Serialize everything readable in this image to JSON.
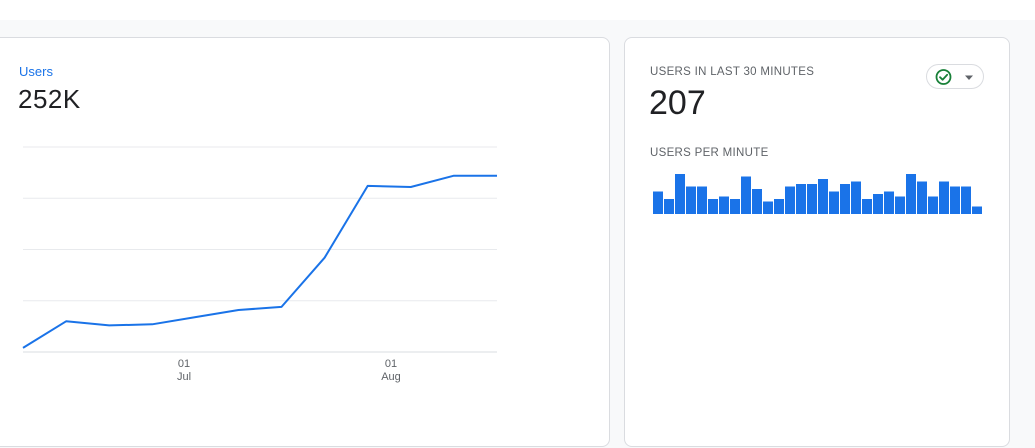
{
  "users_card": {
    "label": "Users",
    "value": "252K"
  },
  "realtime_card": {
    "title": "USERS IN LAST 30 MINUTES",
    "value": "207",
    "subtitle": "USERS PER MINUTE"
  },
  "icons": {
    "status": "check-circle-icon",
    "dropdown": "dropdown-arrow-icon"
  },
  "colors": {
    "accent": "#1a73e8",
    "status_ok": "#188038"
  },
  "chart_data": [
    {
      "type": "line",
      "series": [
        {
          "values": [
            4,
            30,
            26,
            27,
            34,
            41,
            44,
            92,
            162,
            161,
            172,
            172
          ]
        }
      ],
      "x_tick_labels": [
        {
          "day": "01",
          "month": "Jul"
        },
        {
          "day": "01",
          "month": "Aug"
        }
      ],
      "ylim": [
        0,
        200
      ],
      "grid": true
    },
    {
      "type": "bar",
      "values": [
        9,
        6,
        16,
        11,
        11,
        6,
        7,
        6,
        15,
        10,
        5,
        6,
        11,
        12,
        12,
        14,
        9,
        12,
        13,
        6,
        8,
        9,
        7,
        16,
        13,
        7,
        13,
        11,
        11,
        3
      ],
      "ylim": [
        0,
        16
      ]
    }
  ]
}
